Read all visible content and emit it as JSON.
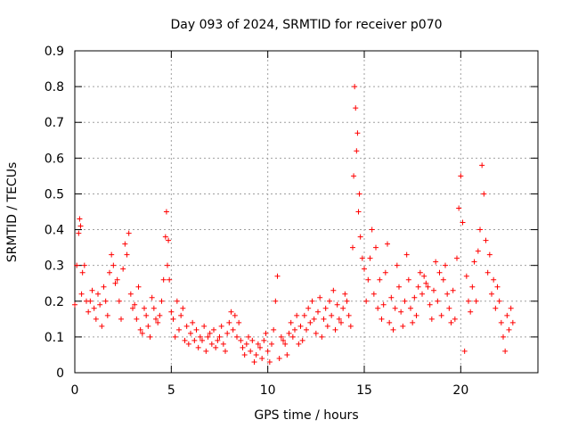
{
  "chart_data": {
    "type": "scatter",
    "title": "Day 093 of 2024, SRMTID for receiver p070",
    "xlabel": "GPS time / hours",
    "ylabel": "SRMTID / TECUs",
    "xlim": [
      0,
      24
    ],
    "ylim": [
      0,
      0.9
    ],
    "x_ticks": [
      0,
      5,
      10,
      15,
      20
    ],
    "x_tick_labels": [
      "0",
      "5",
      "10",
      "15",
      "20"
    ],
    "y_ticks": [
      0,
      0.1,
      0.2,
      0.3,
      0.4,
      0.5,
      0.6,
      0.7,
      0.8,
      0.9
    ],
    "y_tick_labels": [
      "0",
      "0.1",
      "0.2",
      "0.3",
      "0.4",
      "0.5",
      "0.6",
      "0.7",
      "0.8",
      "0.9"
    ],
    "grid": true,
    "marker": "plus",
    "color": "#ff0000",
    "series": [
      {
        "name": "SRMTID",
        "x": [
          0.0,
          0.1,
          0.2,
          0.25,
          0.3,
          0.35,
          0.4,
          0.5,
          0.6,
          0.7,
          0.8,
          0.9,
          1.0,
          1.1,
          1.2,
          1.3,
          1.4,
          1.5,
          1.6,
          1.7,
          1.8,
          1.9,
          2.0,
          2.1,
          2.2,
          2.3,
          2.4,
          2.5,
          2.6,
          2.7,
          2.8,
          2.9,
          3.0,
          3.1,
          3.2,
          3.3,
          3.4,
          3.5,
          3.6,
          3.7,
          3.8,
          3.9,
          4.0,
          4.1,
          4.2,
          4.3,
          4.4,
          4.5,
          4.6,
          4.7,
          4.75,
          4.8,
          4.85,
          4.9,
          5.0,
          5.1,
          5.2,
          5.3,
          5.4,
          5.5,
          5.6,
          5.7,
          5.8,
          5.9,
          6.0,
          6.1,
          6.2,
          6.3,
          6.4,
          6.5,
          6.6,
          6.7,
          6.8,
          6.9,
          7.0,
          7.1,
          7.2,
          7.3,
          7.4,
          7.5,
          7.6,
          7.7,
          7.8,
          7.9,
          8.0,
          8.1,
          8.2,
          8.3,
          8.4,
          8.5,
          8.6,
          8.7,
          8.8,
          8.9,
          9.0,
          9.1,
          9.2,
          9.3,
          9.4,
          9.5,
          9.6,
          9.7,
          9.8,
          9.9,
          10.0,
          10.1,
          10.2,
          10.3,
          10.4,
          10.5,
          10.6,
          10.7,
          10.8,
          10.9,
          11.0,
          11.1,
          11.2,
          11.3,
          11.4,
          11.5,
          11.6,
          11.7,
          11.8,
          11.9,
          12.0,
          12.1,
          12.2,
          12.3,
          12.4,
          12.5,
          12.6,
          12.7,
          12.8,
          12.9,
          13.0,
          13.1,
          13.2,
          13.3,
          13.4,
          13.5,
          13.6,
          13.7,
          13.8,
          13.9,
          14.0,
          14.1,
          14.2,
          14.3,
          14.4,
          14.45,
          14.5,
          14.55,
          14.6,
          14.65,
          14.7,
          14.75,
          14.8,
          14.9,
          15.0,
          15.1,
          15.2,
          15.3,
          15.4,
          15.5,
          15.6,
          15.7,
          15.8,
          15.9,
          16.0,
          16.1,
          16.2,
          16.3,
          16.4,
          16.5,
          16.6,
          16.7,
          16.8,
          16.9,
          17.0,
          17.1,
          17.2,
          17.3,
          17.4,
          17.5,
          17.6,
          17.7,
          17.8,
          17.9,
          18.0,
          18.1,
          18.2,
          18.3,
          18.4,
          18.5,
          18.6,
          18.7,
          18.8,
          18.9,
          19.0,
          19.1,
          19.2,
          19.3,
          19.4,
          19.5,
          19.6,
          19.7,
          19.8,
          19.9,
          20.0,
          20.1,
          20.2,
          20.3,
          20.4,
          20.5,
          20.6,
          20.7,
          20.8,
          20.9,
          21.0,
          21.1,
          21.2,
          21.3,
          21.4,
          21.5,
          21.6,
          21.7,
          21.8,
          21.9,
          22.0,
          22.1,
          22.2,
          22.3,
          22.4,
          22.5,
          22.6,
          22.7
        ],
        "y": [
          0.19,
          0.3,
          0.39,
          0.43,
          0.41,
          0.22,
          0.28,
          0.3,
          0.2,
          0.17,
          0.2,
          0.23,
          0.18,
          0.15,
          0.22,
          0.19,
          0.13,
          0.24,
          0.2,
          0.16,
          0.28,
          0.33,
          0.3,
          0.25,
          0.26,
          0.2,
          0.15,
          0.29,
          0.36,
          0.33,
          0.39,
          0.22,
          0.18,
          0.19,
          0.15,
          0.24,
          0.12,
          0.11,
          0.18,
          0.16,
          0.13,
          0.1,
          0.21,
          0.18,
          0.15,
          0.14,
          0.16,
          0.2,
          0.26,
          0.38,
          0.45,
          0.3,
          0.37,
          0.26,
          0.17,
          0.15,
          0.1,
          0.2,
          0.12,
          0.16,
          0.18,
          0.09,
          0.13,
          0.08,
          0.11,
          0.14,
          0.09,
          0.12,
          0.07,
          0.1,
          0.09,
          0.13,
          0.06,
          0.1,
          0.11,
          0.08,
          0.12,
          0.07,
          0.09,
          0.1,
          0.13,
          0.08,
          0.06,
          0.11,
          0.14,
          0.17,
          0.12,
          0.16,
          0.1,
          0.14,
          0.09,
          0.07,
          0.05,
          0.08,
          0.1,
          0.06,
          0.09,
          0.03,
          0.05,
          0.08,
          0.07,
          0.04,
          0.09,
          0.11,
          0.06,
          0.03,
          0.08,
          0.12,
          0.2,
          0.27,
          0.04,
          0.1,
          0.09,
          0.08,
          0.05,
          0.11,
          0.14,
          0.1,
          0.12,
          0.16,
          0.08,
          0.13,
          0.09,
          0.16,
          0.12,
          0.18,
          0.14,
          0.2,
          0.15,
          0.11,
          0.17,
          0.21,
          0.1,
          0.15,
          0.18,
          0.13,
          0.2,
          0.16,
          0.23,
          0.12,
          0.19,
          0.15,
          0.14,
          0.18,
          0.22,
          0.2,
          0.16,
          0.13,
          0.35,
          0.55,
          0.8,
          0.74,
          0.62,
          0.67,
          0.45,
          0.5,
          0.38,
          0.32,
          0.29,
          0.2,
          0.26,
          0.32,
          0.4,
          0.22,
          0.35,
          0.18,
          0.26,
          0.15,
          0.19,
          0.28,
          0.36,
          0.14,
          0.21,
          0.12,
          0.18,
          0.3,
          0.24,
          0.17,
          0.13,
          0.2,
          0.33,
          0.26,
          0.18,
          0.14,
          0.21,
          0.16,
          0.24,
          0.28,
          0.22,
          0.27,
          0.25,
          0.24,
          0.19,
          0.15,
          0.23,
          0.31,
          0.2,
          0.28,
          0.16,
          0.26,
          0.3,
          0.22,
          0.18,
          0.14,
          0.23,
          0.15,
          0.32,
          0.46,
          0.55,
          0.42,
          0.06,
          0.27,
          0.2,
          0.17,
          0.24,
          0.31,
          0.2,
          0.34,
          0.4,
          0.58,
          0.5,
          0.37,
          0.28,
          0.33,
          0.22,
          0.26,
          0.18,
          0.24,
          0.2,
          0.14,
          0.1,
          0.06,
          0.16,
          0.12,
          0.18,
          0.14
        ]
      }
    ]
  }
}
